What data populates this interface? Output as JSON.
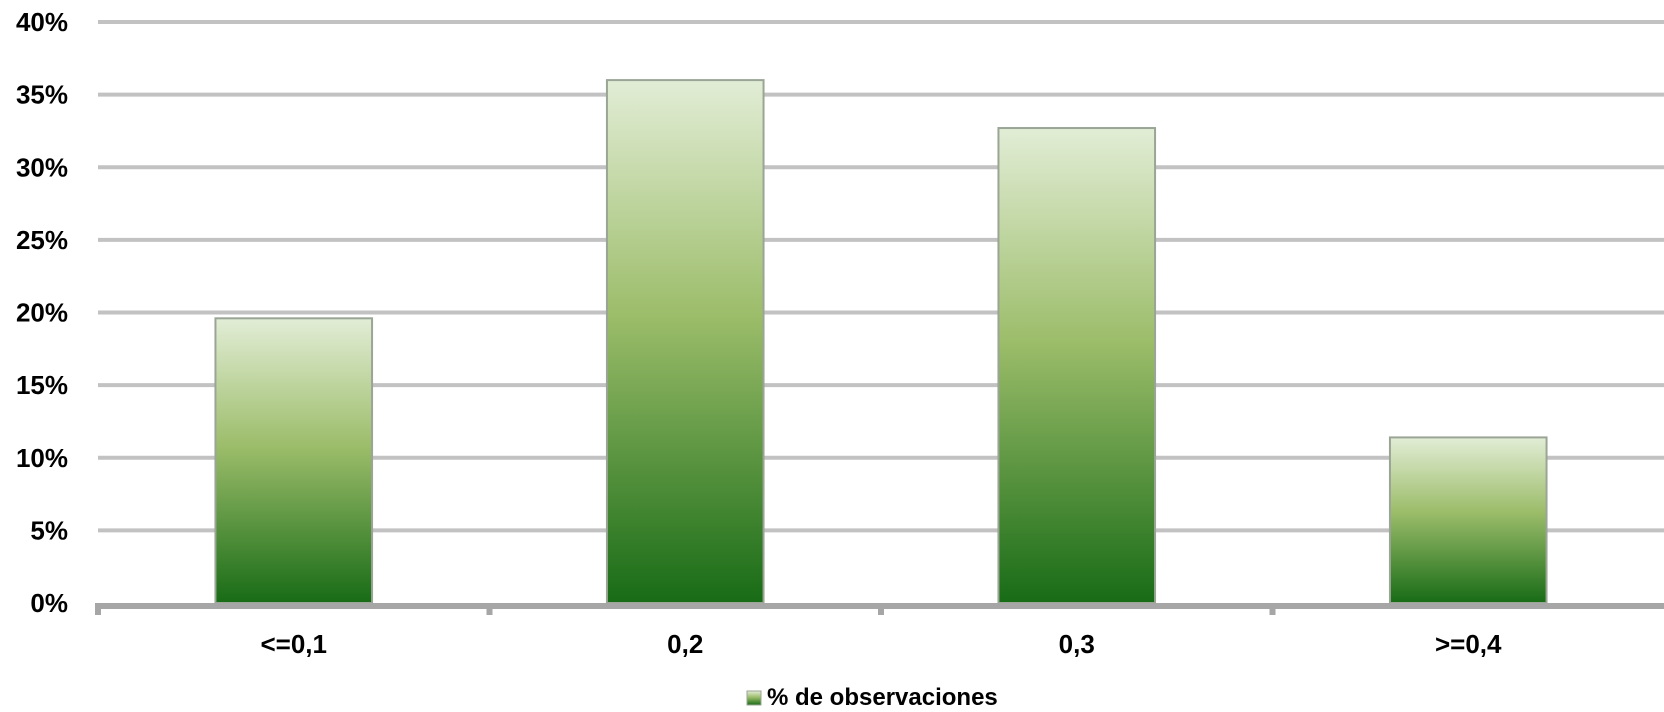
{
  "chart_data": {
    "type": "bar",
    "categories": [
      "<=0,1",
      "0,2",
      "0,3",
      ">=0,4"
    ],
    "series": [
      {
        "name": "% de observaciones",
        "values": [
          19.6,
          36.0,
          32.7,
          11.4
        ]
      }
    ],
    "ylim": [
      0,
      40
    ],
    "yticks": [
      "0%",
      "5%",
      "10%",
      "15%",
      "20%",
      "25%",
      "30%",
      "35%",
      "40%"
    ],
    "grid": true,
    "legend_position": "bottom",
    "colors": {
      "bar_top": "#e2edd6",
      "bar_mid": "#9cbd6a",
      "bar_bottom": "#186b16",
      "bar_border": "#9aa596",
      "grid": "#c2c2c2",
      "axis": "#a6a6a6"
    }
  }
}
